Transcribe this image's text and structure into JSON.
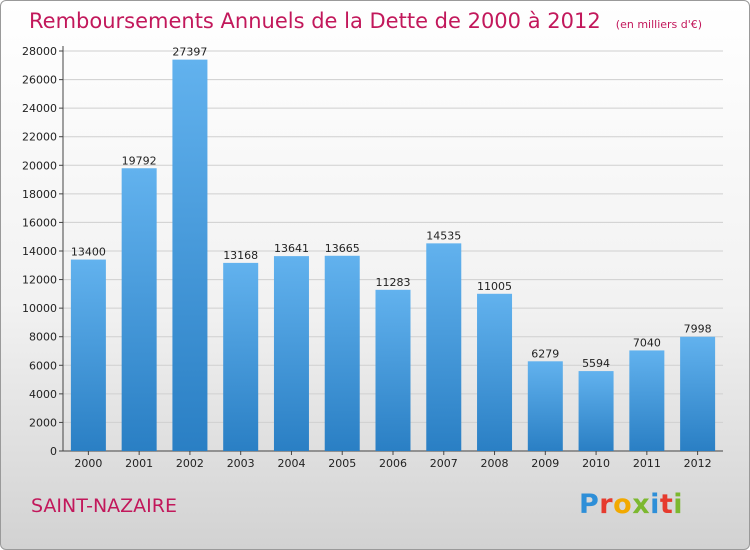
{
  "header": {
    "title": "Remboursements Annuels de la Dette de 2000 à 2012",
    "unit": "(en milliers d'€)"
  },
  "footer": {
    "city": "SAINT-NAZAIRE",
    "brand": [
      "P",
      "r",
      "o",
      "x",
      "i",
      "t",
      "i"
    ],
    "brand_colors": [
      "#2e8fd8",
      "#e63b2e",
      "#f2a900",
      "#7cb82f",
      "#2e8fd8",
      "#e63b2e",
      "#7cb82f"
    ]
  },
  "colors": {
    "bar_light": "#62b2ee",
    "bar_dark": "#2a7fc4",
    "grid": "#cfcfcf",
    "title": "#c2185b"
  },
  "chart_data": {
    "type": "bar",
    "title": "Remboursements Annuels de la Dette de 2000 à 2012",
    "subtitle": "(en milliers d'€)",
    "xlabel": "",
    "ylabel": "",
    "categories": [
      "2000",
      "2001",
      "2002",
      "2003",
      "2004",
      "2005",
      "2006",
      "2007",
      "2008",
      "2009",
      "2010",
      "2011",
      "2012"
    ],
    "values": [
      13400,
      19792,
      27397,
      13168,
      13641,
      13665,
      11283,
      14535,
      11005,
      6279,
      5594,
      7040,
      7998
    ],
    "ylim": [
      0,
      28000
    ],
    "yticks": [
      0,
      2000,
      4000,
      6000,
      8000,
      10000,
      12000,
      14000,
      16000,
      18000,
      20000,
      22000,
      24000,
      26000,
      28000
    ],
    "grid": true,
    "legend": "none"
  }
}
